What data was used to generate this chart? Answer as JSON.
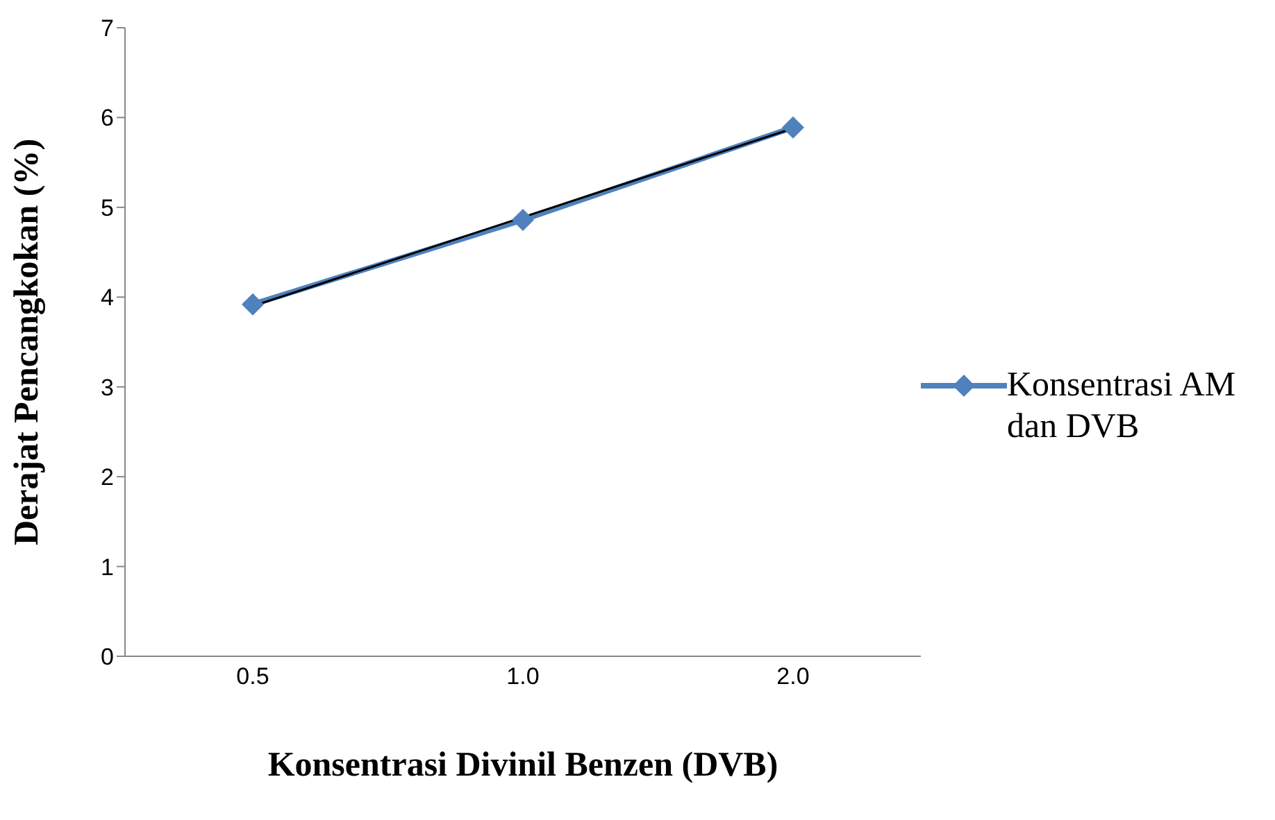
{
  "chart_data": {
    "type": "line",
    "xlabel": "Konsentrasi Divinil Benzen (DVB)",
    "ylabel": "Derajat Pencangkokan (%)",
    "categories": [
      "0.5",
      "1.0",
      "2.0"
    ],
    "series": [
      {
        "name": "Konsentrasi AM dan DVB",
        "color": "#4f81bd",
        "values": [
          3.92,
          4.86,
          5.89
        ],
        "marker": "diamond"
      },
      {
        "type": "line",
        "color": "#000000",
        "values": [
          3.9,
          4.89,
          5.88
        ],
        "marker": "none"
      }
    ],
    "ylim": [
      0,
      7
    ],
    "yticks": [
      0,
      1,
      2,
      3,
      4,
      5,
      6,
      7
    ],
    "legend": "right"
  }
}
